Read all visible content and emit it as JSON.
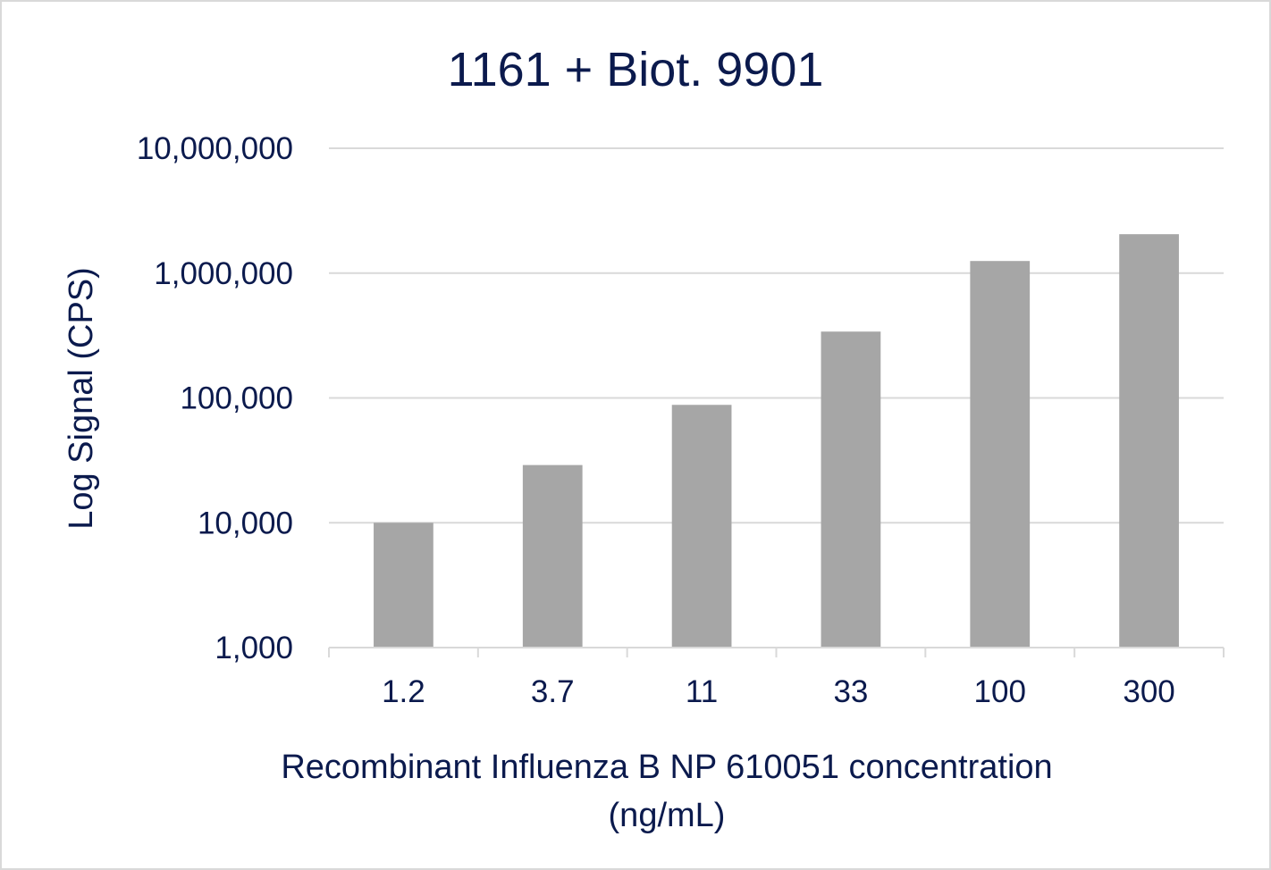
{
  "chart_data": {
    "type": "bar",
    "title": "1161 + Biot. 9901",
    "xlabel_lines": [
      "Recombinant Influenza B NP 610051 concentration",
      "(ng/mL)"
    ],
    "ylabel": "Log Signal (CPS)",
    "categories": [
      "1.2",
      "3.7",
      "11",
      "33",
      "100",
      "300"
    ],
    "values": [
      10000,
      29000,
      88000,
      340000,
      1250000,
      2050000
    ],
    "y_scale": "log",
    "ylim": [
      1000,
      10000000
    ],
    "y_ticks": [
      1000,
      10000,
      100000,
      1000000,
      10000000
    ],
    "y_tick_labels": [
      "1,000",
      "10,000",
      "100,000",
      "1,000,000",
      "10,000,000"
    ],
    "grid": true,
    "legend": "none",
    "bar_color": "#a6a6a6",
    "text_color": "#0b1a4d",
    "gridline_color": "#d9d9d9"
  }
}
